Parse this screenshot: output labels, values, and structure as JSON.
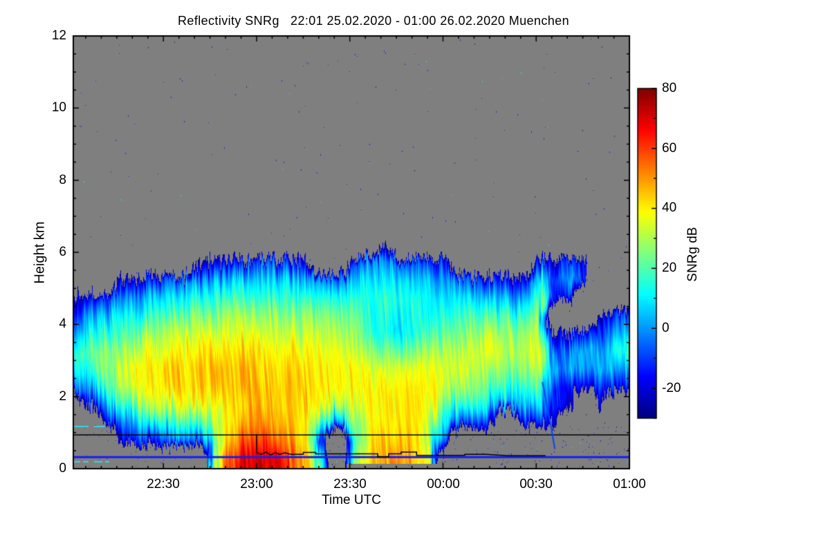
{
  "figure": {
    "title": "Reflectivity SNRg   22:01 25.02.2020 - 01:00 26.02.2020 Muenchen",
    "site": "Muenchen"
  },
  "colors": {
    "page_bg": "#ffffff",
    "plot_bg": "#7f7f7f",
    "axis": "#000000",
    "surface_line": "#1c1cf0",
    "overlay_line": "#000000",
    "speckle_blue": "#2828be",
    "speckle_cyan": "#35d6e8",
    "virga": "#0044ff"
  },
  "axes": {
    "x": {
      "label": "Time UTC",
      "start": "22:01",
      "end": "01:00",
      "range_minutes": [
        0,
        179
      ],
      "ticks": [
        "22:30",
        "23:00",
        "23:30",
        "00:00",
        "00:30",
        "01:00"
      ],
      "tick_minutes": [
        29,
        59,
        89,
        119,
        149,
        179
      ],
      "minor_step_minutes": 5
    },
    "y": {
      "label": "Height km",
      "range_km": [
        0,
        12
      ],
      "ticks": [
        "12",
        "10",
        "8",
        "6",
        "4",
        "2",
        "0"
      ],
      "tick_values": [
        12,
        10,
        8,
        6,
        4,
        2,
        0
      ],
      "minor_step_km": 0.5
    }
  },
  "colorbar": {
    "label": "SNRg dB",
    "range": [
      -30,
      80
    ],
    "ticks": [
      "80",
      "60",
      "40",
      "20",
      "0",
      "-20"
    ],
    "tick_values": [
      80,
      60,
      40,
      20,
      0,
      -20
    ],
    "minor_step": 10,
    "colormap": "jet"
  },
  "chart_data": {
    "type": "heatmap",
    "title": "Reflectivity SNRg 22:01 25.02.2020 - 01:00 26.02.2020 Muenchen",
    "xlabel": "Time UTC",
    "ylabel": "Height km",
    "value_label": "SNRg dB",
    "vmin": -30,
    "vmax": 80,
    "nodata": -99,
    "x_minutes_after_2201": [
      0,
      5,
      10,
      15,
      20,
      25,
      30,
      35,
      40,
      45,
      50,
      55,
      60,
      65,
      70,
      75,
      80,
      85,
      90,
      95,
      100,
      105,
      110,
      115,
      120,
      125,
      130,
      135,
      140,
      145,
      150,
      155,
      160,
      165,
      170,
      175,
      180
    ],
    "heights_km": [
      0.25,
      0.75,
      1.25,
      1.75,
      2.25,
      2.75,
      3.25,
      3.75,
      4.25,
      4.75,
      5.25,
      5.75,
      6.25
    ],
    "snr_db_columns": [
      [
        -99,
        -99,
        -99,
        -99,
        -15,
        5,
        15,
        5,
        -10,
        -25,
        -99,
        -99,
        -99
      ],
      [
        -99,
        -99,
        -99,
        -20,
        0,
        15,
        22,
        12,
        0,
        -20,
        -99,
        -99,
        -99
      ],
      [
        -99,
        -99,
        -18,
        0,
        18,
        26,
        26,
        16,
        5,
        -12,
        -99,
        -99,
        -99
      ],
      [
        -99,
        -22,
        -5,
        15,
        28,
        33,
        28,
        18,
        8,
        -5,
        -28,
        -99,
        -99
      ],
      [
        -99,
        -12,
        5,
        25,
        36,
        38,
        31,
        22,
        12,
        0,
        -22,
        -99,
        -99
      ],
      [
        -99,
        -18,
        10,
        30,
        40,
        42,
        34,
        26,
        16,
        4,
        -18,
        -99,
        -99
      ],
      [
        -99,
        -8,
        14,
        32,
        42,
        43,
        36,
        30,
        20,
        8,
        -12,
        -99,
        -99
      ],
      [
        -99,
        -2,
        18,
        35,
        43,
        44,
        38,
        32,
        23,
        11,
        -6,
        -99,
        -99
      ],
      [
        -99,
        -12,
        16,
        36,
        44,
        45,
        40,
        33,
        25,
        13,
        -2,
        -28,
        -99
      ],
      [
        20,
        15,
        28,
        38,
        45,
        46,
        41,
        34,
        26,
        15,
        0,
        -25,
        -99
      ],
      [
        55,
        45,
        40,
        42,
        46,
        47,
        42,
        35,
        27,
        16,
        3,
        -20,
        -99
      ],
      [
        68,
        56,
        48,
        44,
        47,
        46,
        42,
        35,
        28,
        17,
        6,
        -15,
        -99
      ],
      [
        72,
        60,
        50,
        45,
        46,
        45,
        41,
        35,
        28,
        18,
        9,
        -8,
        -99
      ],
      [
        70,
        58,
        48,
        44,
        45,
        44,
        40,
        34,
        27,
        17,
        7,
        -12,
        -99
      ],
      [
        60,
        50,
        45,
        43,
        44,
        43,
        40,
        33,
        26,
        16,
        4,
        -18,
        -99
      ],
      [
        46,
        40,
        39,
        42,
        43,
        42,
        39,
        33,
        25,
        15,
        2,
        -22,
        -99
      ],
      [
        8,
        -8,
        18,
        38,
        42,
        41,
        38,
        32,
        24,
        13,
        -2,
        -99,
        -99
      ],
      [
        -99,
        -99,
        -2,
        30,
        40,
        40,
        37,
        31,
        23,
        12,
        -8,
        -99,
        -99
      ],
      [
        22,
        16,
        26,
        35,
        40,
        40,
        36,
        30,
        23,
        15,
        4,
        -10,
        -99
      ],
      [
        40,
        38,
        36,
        38,
        40,
        38,
        30,
        20,
        18,
        16,
        9,
        -2,
        -99
      ],
      [
        48,
        44,
        40,
        40,
        41,
        36,
        24,
        12,
        14,
        17,
        11,
        0,
        -25
      ],
      [
        50,
        46,
        42,
        41,
        40,
        35,
        20,
        8,
        11,
        14,
        9,
        -4,
        -99
      ],
      [
        45,
        42,
        40,
        40,
        40,
        36,
        24,
        13,
        13,
        13,
        7,
        -8,
        -99
      ],
      [
        34,
        30,
        34,
        38,
        39,
        36,
        28,
        17,
        11,
        9,
        3,
        -14,
        -99
      ],
      [
        -99,
        -22,
        8,
        24,
        34,
        36,
        30,
        21,
        14,
        7,
        -2,
        -18,
        -99
      ],
      [
        -99,
        -99,
        -12,
        14,
        27,
        33,
        32,
        25,
        17,
        8,
        -8,
        -99,
        -99
      ],
      [
        -99,
        -99,
        -16,
        9,
        24,
        32,
        34,
        27,
        19,
        6,
        -12,
        -99,
        -99
      ],
      [
        -99,
        -99,
        -22,
        4,
        21,
        31,
        34,
        29,
        19,
        3,
        -17,
        -99,
        -99
      ],
      [
        -99,
        -99,
        -99,
        0,
        17,
        27,
        32,
        27,
        17,
        0,
        -22,
        -99,
        -99
      ],
      [
        -99,
        -99,
        -18,
        4,
        14,
        24,
        30,
        26,
        14,
        -2,
        -20,
        -99,
        -99
      ],
      [
        -99,
        -99,
        -14,
        8,
        24,
        34,
        39,
        36,
        30,
        22,
        8,
        -16,
        -99
      ],
      [
        -99,
        -99,
        -22,
        -12,
        -16,
        -2,
        -8,
        -22,
        -99,
        -18,
        -6,
        -22,
        -99
      ],
      [
        -99,
        -99,
        -99,
        -26,
        -16,
        3,
        -2,
        -22,
        -99,
        -12,
        4,
        -6,
        -99
      ],
      [
        -99,
        -99,
        -99,
        -99,
        -20,
        -2,
        4,
        -16,
        -99,
        -99,
        -14,
        -20,
        -99
      ],
      [
        -99,
        -99,
        -99,
        -22,
        -12,
        4,
        -2,
        -12,
        -22,
        -99,
        -99,
        -99,
        -99
      ],
      [
        -99,
        -99,
        -99,
        -99,
        -16,
        4,
        14,
        0,
        -16,
        -99,
        -99,
        -99,
        -99
      ],
      [
        -99,
        -99,
        -99,
        -99,
        -12,
        0,
        18,
        9,
        -4,
        -22,
        -99,
        -99,
        -99
      ]
    ],
    "overlays": {
      "horizontal_line_km": 0.95,
      "surface_line_km": 0.33,
      "ground_gap": {
        "t_minutes": [
          88,
          117
        ],
        "below_km": 0.13
      },
      "cloud_base_line": [
        [
          59,
          0.95
        ],
        [
          59,
          0.44
        ],
        [
          60.5,
          0.4
        ],
        [
          62,
          0.46
        ],
        [
          63.5,
          0.38
        ],
        [
          65,
          0.44
        ],
        [
          66.5,
          0.4
        ],
        [
          68,
          0.44
        ],
        [
          70,
          0.4
        ],
        [
          74,
          0.4
        ],
        [
          74,
          0.45
        ],
        [
          78,
          0.45
        ],
        [
          78,
          0.41
        ],
        [
          98,
          0.41
        ],
        [
          98,
          0.33
        ],
        [
          101.5,
          0.33
        ],
        [
          101.5,
          0.41
        ],
        [
          105.5,
          0.41
        ],
        [
          105.5,
          0.46
        ],
        [
          110.5,
          0.46
        ],
        [
          110.5,
          0.37
        ],
        [
          126,
          0.37
        ],
        [
          126,
          0.4
        ],
        [
          133,
          0.4
        ],
        [
          140,
          0.36
        ],
        [
          152,
          0.36
        ]
      ],
      "virga_streak": [
        [
          151,
          2.4
        ],
        [
          153.5,
          1.3
        ],
        [
          155,
          0.55
        ]
      ]
    },
    "legend_position": "right-colorbar",
    "grid": "off"
  }
}
